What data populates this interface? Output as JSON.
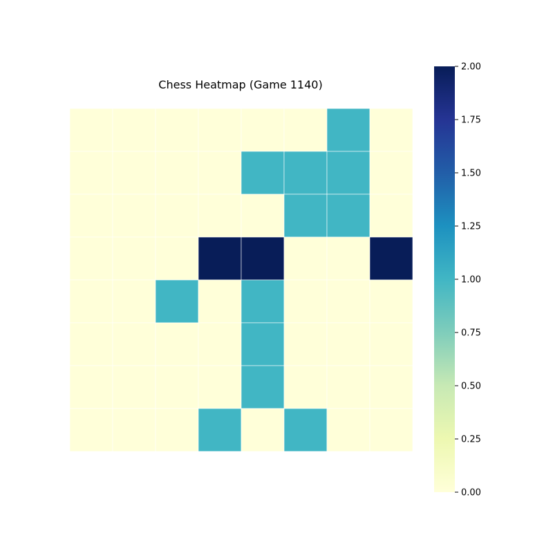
{
  "chart_data": {
    "type": "heatmap",
    "title": "Chess Heatmap (Game 1140)",
    "rows": 8,
    "cols": 8,
    "values": [
      [
        0,
        0,
        0,
        0,
        0,
        0,
        1,
        0
      ],
      [
        0,
        0,
        0,
        0,
        1,
        1,
        1,
        0
      ],
      [
        0,
        0,
        0,
        0,
        0,
        1,
        1,
        0
      ],
      [
        0,
        0,
        0,
        2,
        2,
        0,
        0,
        2
      ],
      [
        0,
        0,
        1,
        0,
        1,
        0,
        0,
        0
      ],
      [
        0,
        0,
        0,
        0,
        1,
        0,
        0,
        0
      ],
      [
        0,
        0,
        0,
        0,
        1,
        0,
        0,
        0
      ],
      [
        0,
        0,
        0,
        1,
        0,
        1,
        0,
        0
      ]
    ],
    "vmin": 0,
    "vmax": 2,
    "colormap": "YlGnBu",
    "axes_visible": false,
    "colorbar": {
      "placement": "right",
      "ticks": [
        0,
        0.25,
        0.5,
        0.75,
        1,
        1.25,
        1.5,
        1.75,
        2
      ],
      "tick_labels": [
        "0.00",
        "0.25",
        "0.50",
        "0.75",
        "1.00",
        "1.25",
        "1.50",
        "1.75",
        "2.00"
      ]
    }
  }
}
